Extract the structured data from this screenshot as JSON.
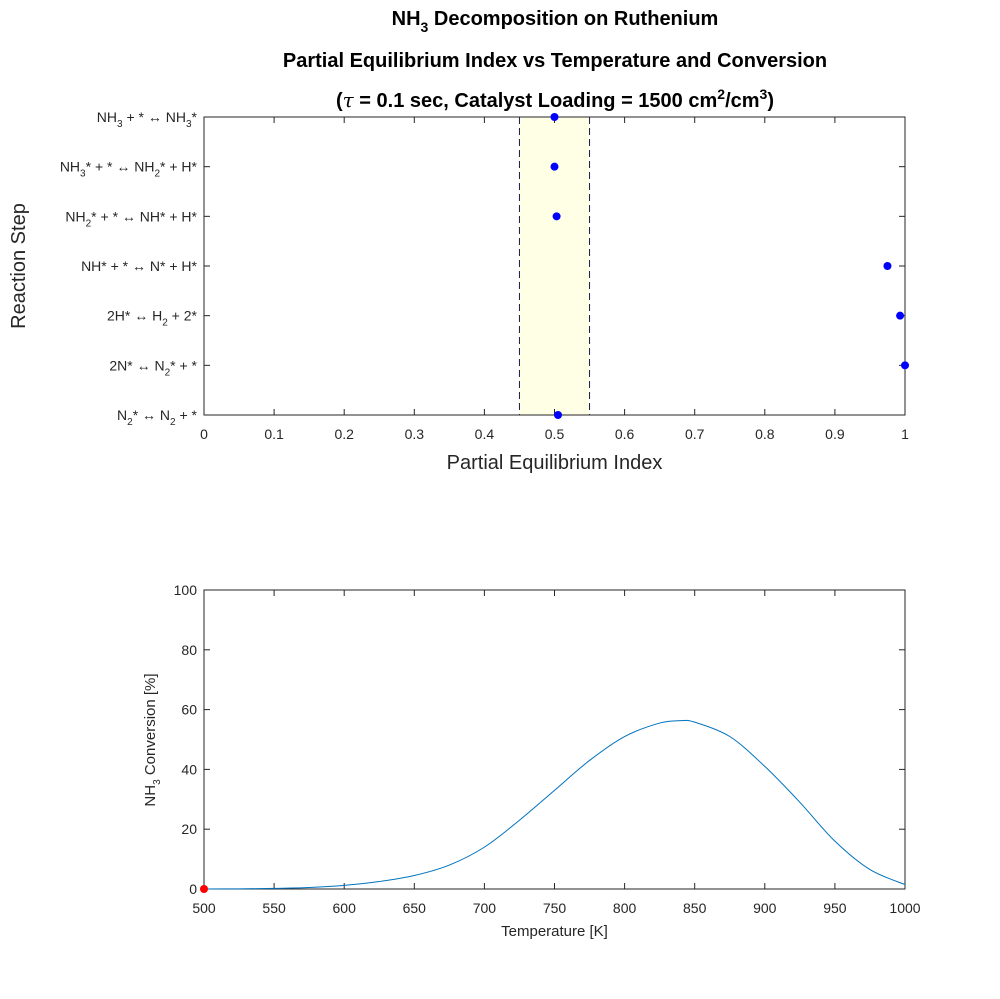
{
  "figure": {
    "title_line1_main": "NH",
    "title_line1_sub": "3",
    "title_line1_rest": " Decomposition on Ruthenium",
    "title_line2": "Partial Equilibrium Index vs Temperature and Conversion",
    "title_line3_open": "(",
    "title_line3_tau": "τ",
    "title_line3_a": " = 0.1 sec,  Catalyst Loading = 1500 cm",
    "title_line3_sup1": "2",
    "title_line3_b": "/cm",
    "title_line3_sup2": "3",
    "title_line3_close": ")"
  },
  "chart_data": [
    {
      "type": "scatter",
      "title": "",
      "xlabel": "Partial Equilibrium Index",
      "ylabel": "Reaction Step",
      "xlim": [
        0,
        1
      ],
      "xticks": [
        "0",
        "0.1",
        "0.2",
        "0.3",
        "0.4",
        "0.5",
        "0.6",
        "0.7",
        "0.8",
        "0.9",
        "1"
      ],
      "xtick_values": [
        0,
        0.1,
        0.2,
        0.3,
        0.4,
        0.5,
        0.6,
        0.7,
        0.8,
        0.9,
        1
      ],
      "band": {
        "from": 0.45,
        "to": 0.55,
        "fill": "#ffffe6",
        "border": "#1a1a4d"
      },
      "marker_color": "#0000ff",
      "categories": [
        {
          "parts": [
            [
              "NH",
              ""
            ],
            [
              "3",
              "sub"
            ],
            [
              " + * ↔ NH",
              ""
            ],
            [
              "3",
              "sub"
            ],
            [
              "*",
              ""
            ]
          ]
        },
        {
          "parts": [
            [
              "NH",
              ""
            ],
            [
              "3",
              "sub"
            ],
            [
              "* + * ↔ NH",
              ""
            ],
            [
              "2",
              "sub"
            ],
            [
              "* + H*",
              ""
            ]
          ]
        },
        {
          "parts": [
            [
              "NH",
              ""
            ],
            [
              "2",
              "sub"
            ],
            [
              "* + * ↔ NH* + H*",
              ""
            ]
          ]
        },
        {
          "parts": [
            [
              "NH* + * ↔ N* + H*",
              ""
            ]
          ]
        },
        {
          "parts": [
            [
              "2H* ↔ H",
              ""
            ],
            [
              "2",
              "sub"
            ],
            [
              " + 2*",
              ""
            ]
          ]
        },
        {
          "parts": [
            [
              "2N* ↔ N",
              ""
            ],
            [
              "2",
              "sub"
            ],
            [
              "* + *",
              ""
            ]
          ]
        },
        {
          "parts": [
            [
              "N",
              ""
            ],
            [
              "2",
              "sub"
            ],
            [
              "* ↔ N",
              ""
            ],
            [
              "2",
              "sub"
            ],
            [
              " + *",
              ""
            ]
          ]
        }
      ],
      "values": [
        0.5,
        0.5,
        0.503,
        0.975,
        0.993,
        1.0,
        0.505
      ]
    },
    {
      "type": "line",
      "title": "",
      "xlabel": "Temperature [K]",
      "ylabel_parts": [
        [
          "NH",
          ""
        ],
        [
          "3",
          "sub"
        ],
        [
          " Conversion [%]",
          ""
        ]
      ],
      "xlim": [
        500,
        1000
      ],
      "ylim": [
        0,
        100
      ],
      "xticks": [
        500,
        550,
        600,
        650,
        700,
        750,
        800,
        850,
        900,
        950,
        1000
      ],
      "yticks": [
        0,
        20,
        40,
        60,
        80,
        100
      ],
      "line_color": "#0072bd",
      "x": [
        500,
        525,
        550,
        575,
        600,
        625,
        650,
        675,
        700,
        725,
        750,
        775,
        800,
        825,
        840,
        850,
        875,
        900,
        925,
        950,
        975,
        1000
      ],
      "y": [
        0,
        0.05,
        0.2,
        0.5,
        1.2,
        2.5,
        4.5,
        8,
        14,
        23,
        33,
        43,
        51,
        55.5,
        56.3,
        55.8,
        51,
        41,
        29,
        16,
        6.5,
        1.5
      ],
      "marker": {
        "x": 500,
        "y": 0,
        "color": "#ff0000"
      }
    }
  ]
}
